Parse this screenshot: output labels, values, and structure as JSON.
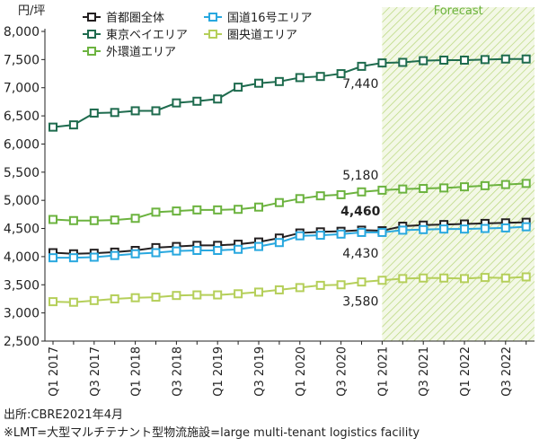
{
  "chart_data": {
    "type": "line",
    "y_unit_label": "円/坪",
    "forecast_label": "Forecast",
    "categories": [
      "Q1 2017",
      null,
      "Q3 2017",
      null,
      "Q1 2018",
      null,
      "Q3 2018",
      null,
      "Q1 2019",
      null,
      "Q3 2019",
      null,
      "Q1 2020",
      null,
      "Q3 2020",
      null,
      "Q1 2021",
      null,
      "Q3 2021",
      null,
      "Q1 2022",
      null,
      "Q3 2022",
      null
    ],
    "ylim": [
      2500,
      8000
    ],
    "yticks": [
      {
        "value": 2500,
        "label": "2,500"
      },
      {
        "value": 3000,
        "label": "3,000"
      },
      {
        "value": 3500,
        "label": "3,500"
      },
      {
        "value": 4000,
        "label": "4,000"
      },
      {
        "value": 4500,
        "label": "4,500"
      },
      {
        "value": 5000,
        "label": "5,000"
      },
      {
        "value": 5500,
        "label": "5,500"
      },
      {
        "value": 6000,
        "label": "6,000"
      },
      {
        "value": 6500,
        "label": "6,500"
      },
      {
        "value": 7000,
        "label": "7,000"
      },
      {
        "value": 7500,
        "label": "7,500"
      },
      {
        "value": 8000,
        "label": "8,000"
      }
    ],
    "series": [
      {
        "name": "首都圏全体",
        "color": "#231f20",
        "values": [
          4070,
          4050,
          4060,
          4080,
          4110,
          4160,
          4180,
          4200,
          4200,
          4220,
          4260,
          4330,
          4420,
          4440,
          4450,
          4470,
          4460,
          4540,
          4560,
          4570,
          4580,
          4590,
          4600,
          4610
        ],
        "value_labels": [
          null,
          null,
          null,
          null,
          null,
          null,
          null,
          null,
          null,
          null,
          null,
          null,
          null,
          null,
          null,
          null,
          "4,460",
          null,
          null,
          null,
          null,
          null,
          null,
          null
        ]
      },
      {
        "name": "東京ベイエリア",
        "color": "#1e6b4e",
        "values": [
          6300,
          6340,
          6550,
          6560,
          6590,
          6590,
          6730,
          6760,
          6800,
          7010,
          7080,
          7110,
          7180,
          7200,
          7250,
          7380,
          7440,
          7450,
          7480,
          7490,
          7490,
          7500,
          7510,
          7510
        ],
        "value_labels": [
          null,
          null,
          null,
          null,
          null,
          null,
          null,
          null,
          null,
          null,
          null,
          null,
          null,
          null,
          null,
          null,
          "7,440",
          null,
          null,
          null,
          null,
          null,
          null,
          null
        ]
      },
      {
        "name": "外環道エリア",
        "color": "#6cb33f",
        "values": [
          4660,
          4640,
          4640,
          4650,
          4680,
          4790,
          4810,
          4830,
          4830,
          4840,
          4880,
          4960,
          5030,
          5080,
          5100,
          5150,
          5180,
          5200,
          5210,
          5220,
          5240,
          5260,
          5280,
          5300
        ],
        "value_labels": [
          null,
          null,
          null,
          null,
          null,
          null,
          null,
          null,
          null,
          null,
          null,
          null,
          null,
          null,
          null,
          null,
          "5,180",
          null,
          null,
          null,
          null,
          null,
          null,
          null
        ]
      },
      {
        "name": "国道16号エリア",
        "color": "#29a8df",
        "values": [
          3980,
          3980,
          3990,
          4020,
          4050,
          4070,
          4100,
          4110,
          4110,
          4130,
          4180,
          4250,
          4370,
          4380,
          4400,
          4430,
          4430,
          4470,
          4480,
          4490,
          4490,
          4500,
          4510,
          4530
        ],
        "value_labels": [
          null,
          null,
          null,
          null,
          null,
          null,
          null,
          null,
          null,
          null,
          null,
          null,
          null,
          null,
          null,
          null,
          "4,430",
          null,
          null,
          null,
          null,
          null,
          null,
          null
        ]
      },
      {
        "name": "圏央道エリア",
        "color": "#b5cf5a",
        "values": [
          3200,
          3190,
          3220,
          3250,
          3270,
          3280,
          3310,
          3320,
          3320,
          3340,
          3370,
          3410,
          3450,
          3490,
          3500,
          3550,
          3580,
          3610,
          3620,
          3620,
          3610,
          3630,
          3620,
          3640
        ],
        "value_labels": [
          null,
          null,
          null,
          null,
          null,
          null,
          null,
          null,
          null,
          null,
          null,
          null,
          null,
          null,
          null,
          null,
          "3,580",
          null,
          null,
          null,
          null,
          null,
          null,
          null
        ]
      }
    ],
    "forecast_start_index": 16
  },
  "footnotes": [
    "出所:CBRE2021年4月",
    "※LMT=大型マルチテナント型物流施設=large multi-tenant logistics facility"
  ]
}
